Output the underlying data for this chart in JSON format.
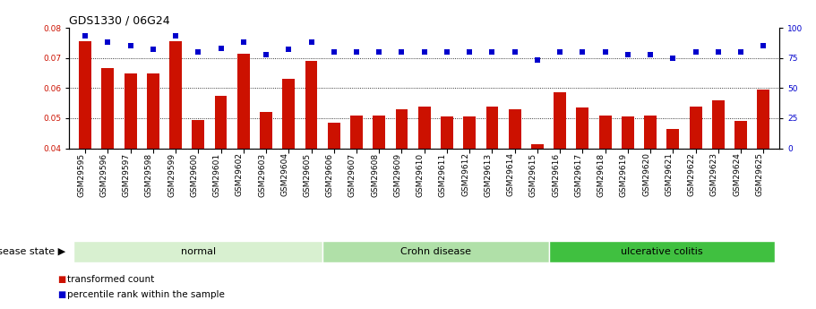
{
  "title": "GDS1330 / 06G24",
  "samples": [
    "GSM29595",
    "GSM29596",
    "GSM29597",
    "GSM29598",
    "GSM29599",
    "GSM29600",
    "GSM29601",
    "GSM29602",
    "GSM29603",
    "GSM29604",
    "GSM29605",
    "GSM29606",
    "GSM29607",
    "GSM29608",
    "GSM29609",
    "GSM29610",
    "GSM29611",
    "GSM29612",
    "GSM29613",
    "GSM29614",
    "GSM29615",
    "GSM29616",
    "GSM29617",
    "GSM29618",
    "GSM29619",
    "GSM29620",
    "GSM29621",
    "GSM29622",
    "GSM29623",
    "GSM29624",
    "GSM29625"
  ],
  "bar_values": [
    0.0755,
    0.0665,
    0.065,
    0.065,
    0.0755,
    0.0495,
    0.0575,
    0.0715,
    0.052,
    0.063,
    0.069,
    0.0485,
    0.051,
    0.051,
    0.053,
    0.054,
    0.0505,
    0.0505,
    0.054,
    0.053,
    0.0415,
    0.0585,
    0.0535,
    0.051,
    0.0505,
    0.051,
    0.0465,
    0.054,
    0.056,
    0.049,
    0.0595
  ],
  "percentile_values": [
    93,
    88,
    85,
    82,
    93,
    80,
    83,
    88,
    78,
    82,
    88,
    80,
    80,
    80,
    80,
    80,
    80,
    80,
    80,
    80,
    73,
    80,
    80,
    80,
    78,
    78,
    75,
    80,
    80,
    80,
    85
  ],
  "groups": [
    {
      "label": "normal",
      "start": 0,
      "end": 10,
      "color": "#d8f0d0"
    },
    {
      "label": "Crohn disease",
      "start": 11,
      "end": 20,
      "color": "#b0e0a8"
    },
    {
      "label": "ulcerative colitis",
      "start": 21,
      "end": 30,
      "color": "#40c040"
    }
  ],
  "ylim_left": [
    0.04,
    0.08
  ],
  "ylim_right": [
    0,
    100
  ],
  "yticks_left": [
    0.04,
    0.05,
    0.06,
    0.07,
    0.08
  ],
  "yticks_right": [
    0,
    25,
    50,
    75,
    100
  ],
  "bar_color": "#cc1100",
  "dot_color": "#0000cc",
  "background_color": "#ffffff",
  "title_fontsize": 9,
  "tick_fontsize": 6.5,
  "label_fontsize": 8,
  "group_label_fontsize": 8,
  "disease_state_label": "disease state"
}
